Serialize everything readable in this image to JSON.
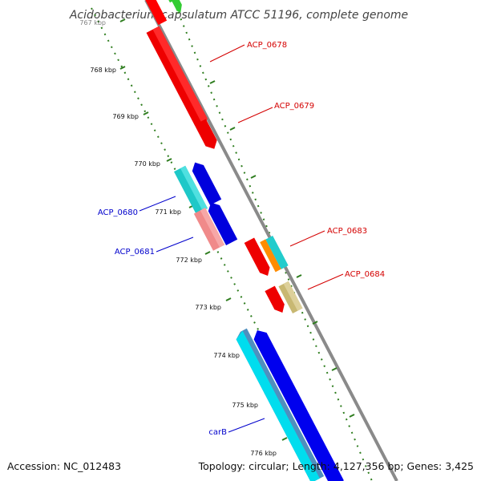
{
  "title": "Acidobacterium capsulatum ATCC 51196, complete genome",
  "footer": {
    "accession": "Accession: NC_012483",
    "summary": "Topology: circular; Length: 4,127,356 bp; Genes: 3,425"
  },
  "scale_labels": [
    "767 kbp",
    "768 kbp",
    "769 kbp",
    "770 kbp",
    "771 kbp",
    "772 kbp",
    "773 kbp",
    "774 kbp",
    "775 kbp",
    "776 kbp"
  ],
  "gene_labels": {
    "acp0678": "ACP_0678",
    "acp0679": "ACP_0679",
    "acp0680": "ACP_0680",
    "acp0681": "ACP_0681",
    "acp0683": "ACP_0683",
    "acp0684": "ACP_0684",
    "carb": "carB"
  },
  "colors": {
    "backbone": "#8a8a8a",
    "tick": "#2e7d1e",
    "label_red": "#d40000",
    "label_blue": "#0000cc",
    "red": "#ff0000",
    "blue": "#0000ee",
    "cyan": "#22cccc",
    "pink": "#f08a8a",
    "orange": "#ff8c00",
    "olive": "#c8b872",
    "green": "#33cc33",
    "steel": "#4f8fbf",
    "lightcyan": "#00ddee"
  }
}
